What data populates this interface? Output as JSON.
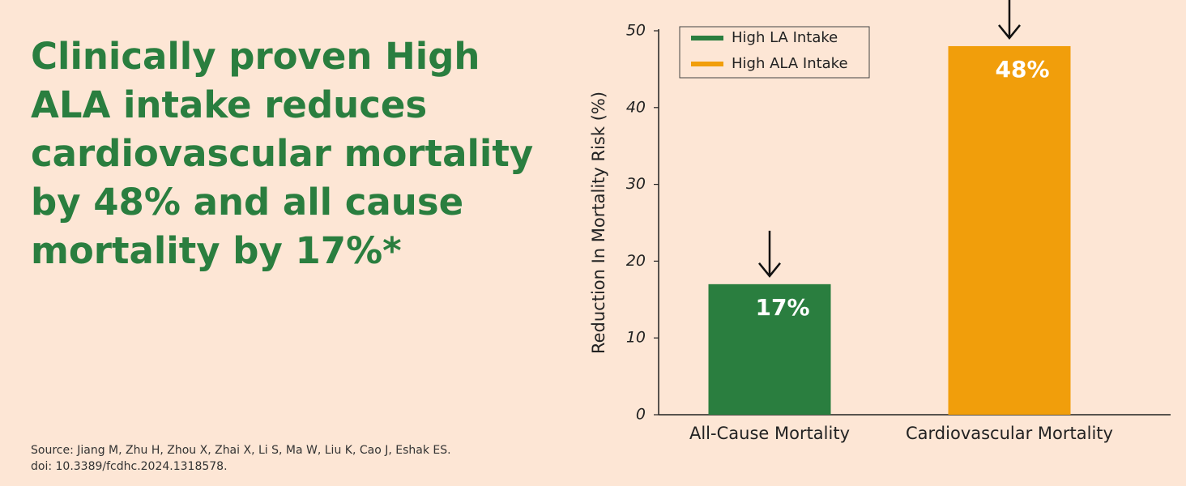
{
  "headline": [
    "Clinically proven High",
    "ALA intake reduces",
    "cardiovascular mortality",
    "by 48% and all cause",
    "mortality by 17%*"
  ],
  "source": [
    "Source: Jiang M, Zhu H, Zhou X, Zhai X, Li S, Ma W, Liu K, Cao J, Eshak ES.",
    "doi: 10.3389/fcdhc.2024.1318578."
  ],
  "chart_data": {
    "type": "bar",
    "y_label": "Reduction In Mortality Risk (%)",
    "categories": [
      "All-Cause Mortality",
      "Cardiovascular Mortality"
    ],
    "series": [
      {
        "name": "High LA Intake",
        "color": "#2a7e3f",
        "values": [
          17,
          null
        ],
        "value_labels": [
          "17%",
          null
        ]
      },
      {
        "name": "High ALA Intake",
        "color": "#f19e0b",
        "values": [
          null,
          48
        ],
        "value_labels": [
          null,
          "48%"
        ]
      }
    ],
    "ylim": [
      0,
      50
    ],
    "yticks": [
      0,
      10,
      20,
      30,
      40,
      50
    ],
    "grid": false,
    "legend": "upper left"
  }
}
